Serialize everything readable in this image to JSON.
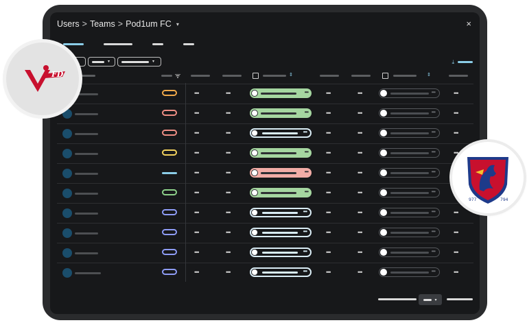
{
  "breadcrumb": {
    "level1": "Users",
    "sep1": ">",
    "level2": "Teams",
    "sep2": ">",
    "current": "Pod1um FC",
    "caret": "▾"
  },
  "window": {
    "close": "×"
  },
  "icons": {
    "close": "x-close-icon",
    "download": "download-icon",
    "sort": "sort-arrows-icon",
    "filter": "filter-funnel-icon",
    "more": "ellipsis-icon",
    "checkbox": "checkbox-icon"
  },
  "glyphs": {
    "dots": "•••",
    "sort": "⇕",
    "caret": "▾",
    "download": "⤓"
  },
  "colors": {
    "accent": "#8bcde8",
    "status_orange": "#f0a94a",
    "status_red": "#ef8f85",
    "status_yellow": "#f4d35e",
    "status_blue": "#8bcde8",
    "status_green": "#8ed18a",
    "status_purple": "#8e9cf5",
    "toggle_green": "#a5d6a0",
    "toggle_red": "#f2aca6",
    "toggle_white": "#d9ecf5"
  },
  "rows": [
    {
      "status": "status_orange",
      "status_flat": false,
      "toggle": "toggle_green"
    },
    {
      "status": "status_red",
      "status_flat": false,
      "toggle": "toggle_green"
    },
    {
      "status": "status_red",
      "status_flat": false,
      "toggle": "toggle_white"
    },
    {
      "status": "status_yellow",
      "status_flat": false,
      "toggle": "toggle_green"
    },
    {
      "status": "status_blue",
      "status_flat": true,
      "toggle": "toggle_red"
    },
    {
      "status": "status_green",
      "status_flat": false,
      "toggle": "toggle_green"
    },
    {
      "status": "status_purple",
      "status_flat": false,
      "toggle": "toggle_white"
    },
    {
      "status": "status_purple",
      "status_flat": false,
      "toggle": "toggle_white"
    },
    {
      "status": "status_purple",
      "status_flat": false,
      "toggle": "toggle_white"
    },
    {
      "status": "status_purple",
      "status_flat": false,
      "toggle": "toggle_white"
    }
  ],
  "logos": {
    "left": {
      "name": "vfd-logo",
      "text": "FD"
    },
    "right": {
      "name": "club-crest-logo",
      "year_left": "977",
      "year_right": "794"
    }
  }
}
